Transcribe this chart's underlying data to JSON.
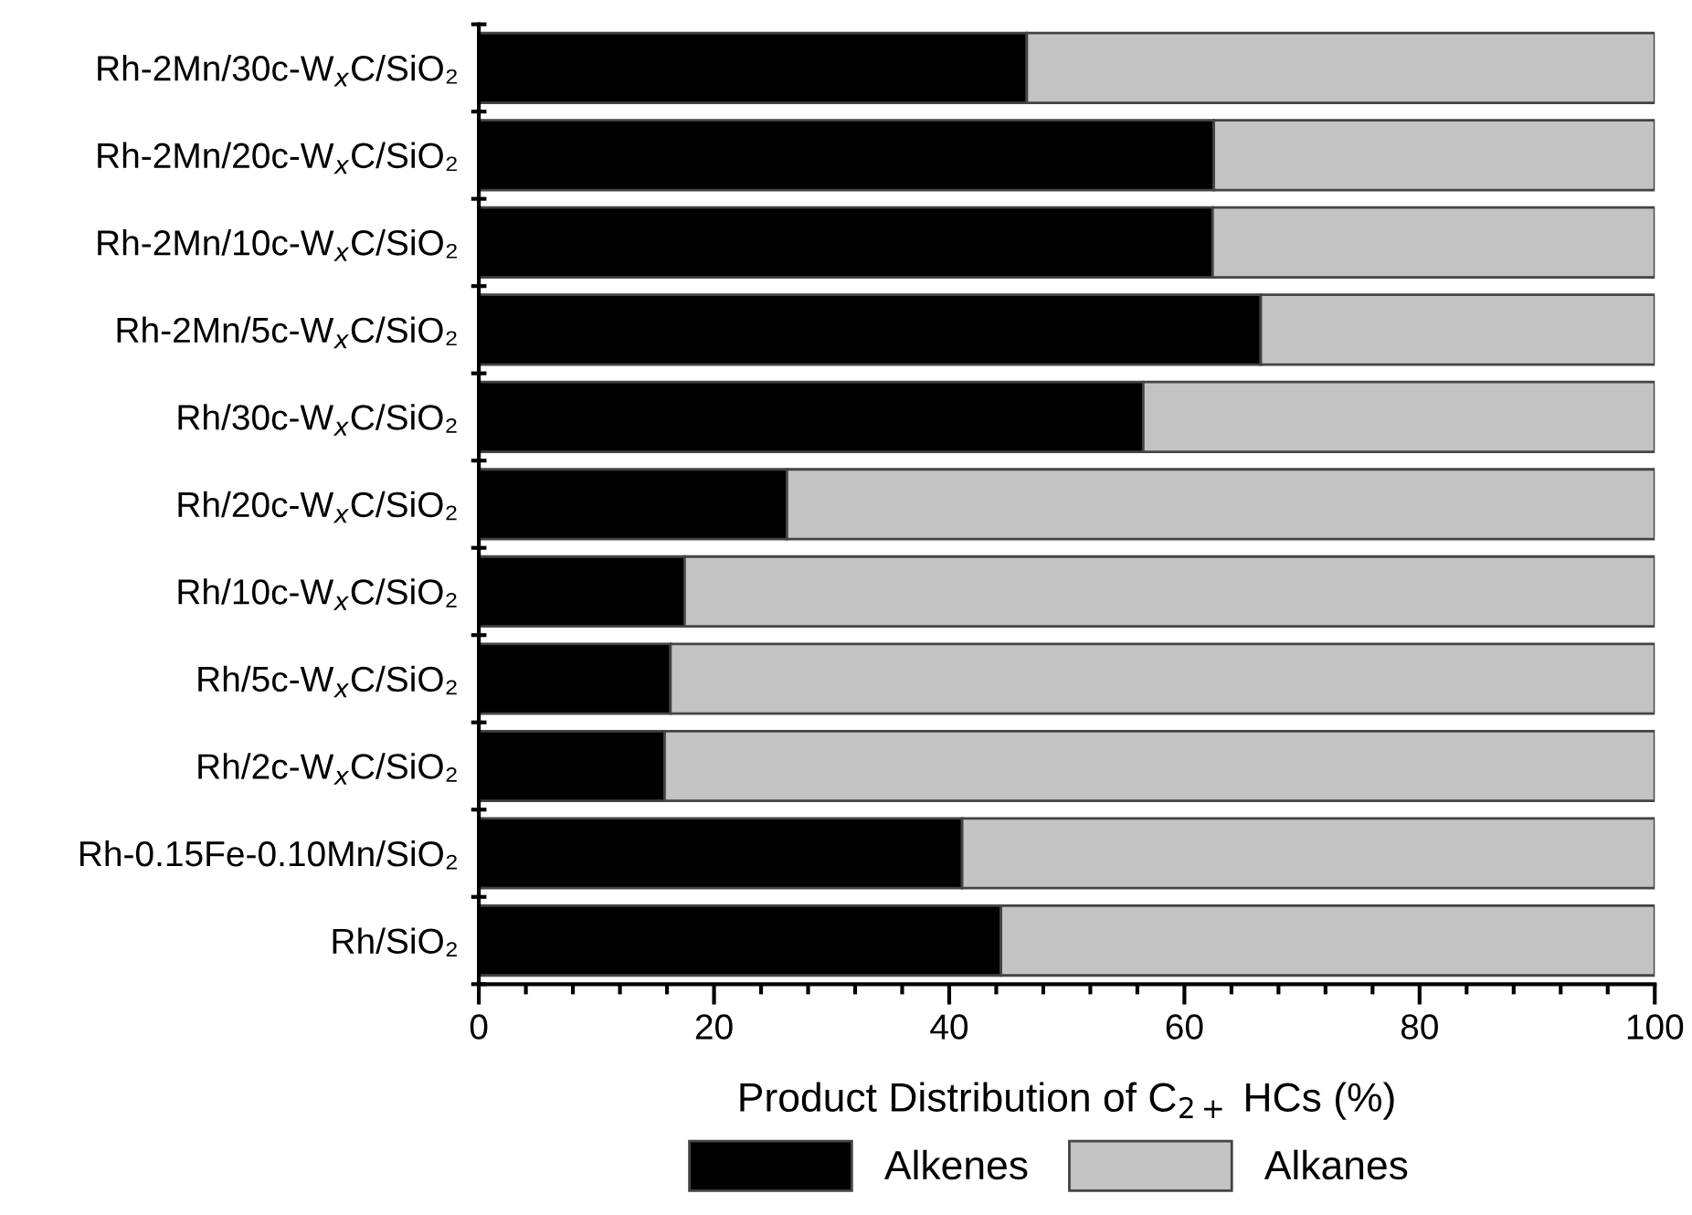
{
  "chart_data": {
    "type": "bar",
    "orientation": "horizontal",
    "stacked": true,
    "categories": [
      "Rh-2Mn/30c-W$_{x}$C/SiO₂",
      "Rh-2Mn/20c-W$_{x}$C/SiO₂",
      "Rh-2Mn/10c-W$_{x}$C/SiO₂",
      "Rh-2Mn/5c-W$_{x}$C/SiO₂",
      "Rh/30c-W$_{x}$C/SiO₂",
      "Rh/20c-W$_{x}$C/SiO₂",
      "Rh/10c-W$_{x}$C/SiO₂",
      "Rh/5c-W$_{x}$C/SiO₂",
      "Rh/2c-W$_{x}$C/SiO₂",
      "Rh-0.15Fe-0.10Mn/SiO₂",
      "Rh/SiO₂"
    ],
    "series": [
      {
        "name": "Alkenes",
        "color": "#000000",
        "values": [
          46.6,
          62.5,
          62.4,
          66.5,
          56.5,
          26.2,
          17.5,
          16.3,
          15.8,
          41.1,
          44.4
        ]
      },
      {
        "name": "Alkanes",
        "color": "#c3c3c3",
        "values": [
          53.4,
          37.5,
          37.6,
          33.5,
          43.5,
          73.8,
          82.5,
          83.7,
          84.2,
          58.9,
          55.6
        ]
      }
    ],
    "xlabel": "Product Distribution of C$_{2+}$ HCs (%)",
    "xlim": [
      0,
      100
    ],
    "xticks": [
      0,
      20,
      40,
      60,
      80,
      100
    ],
    "legend": "bottom",
    "grid": false
  }
}
